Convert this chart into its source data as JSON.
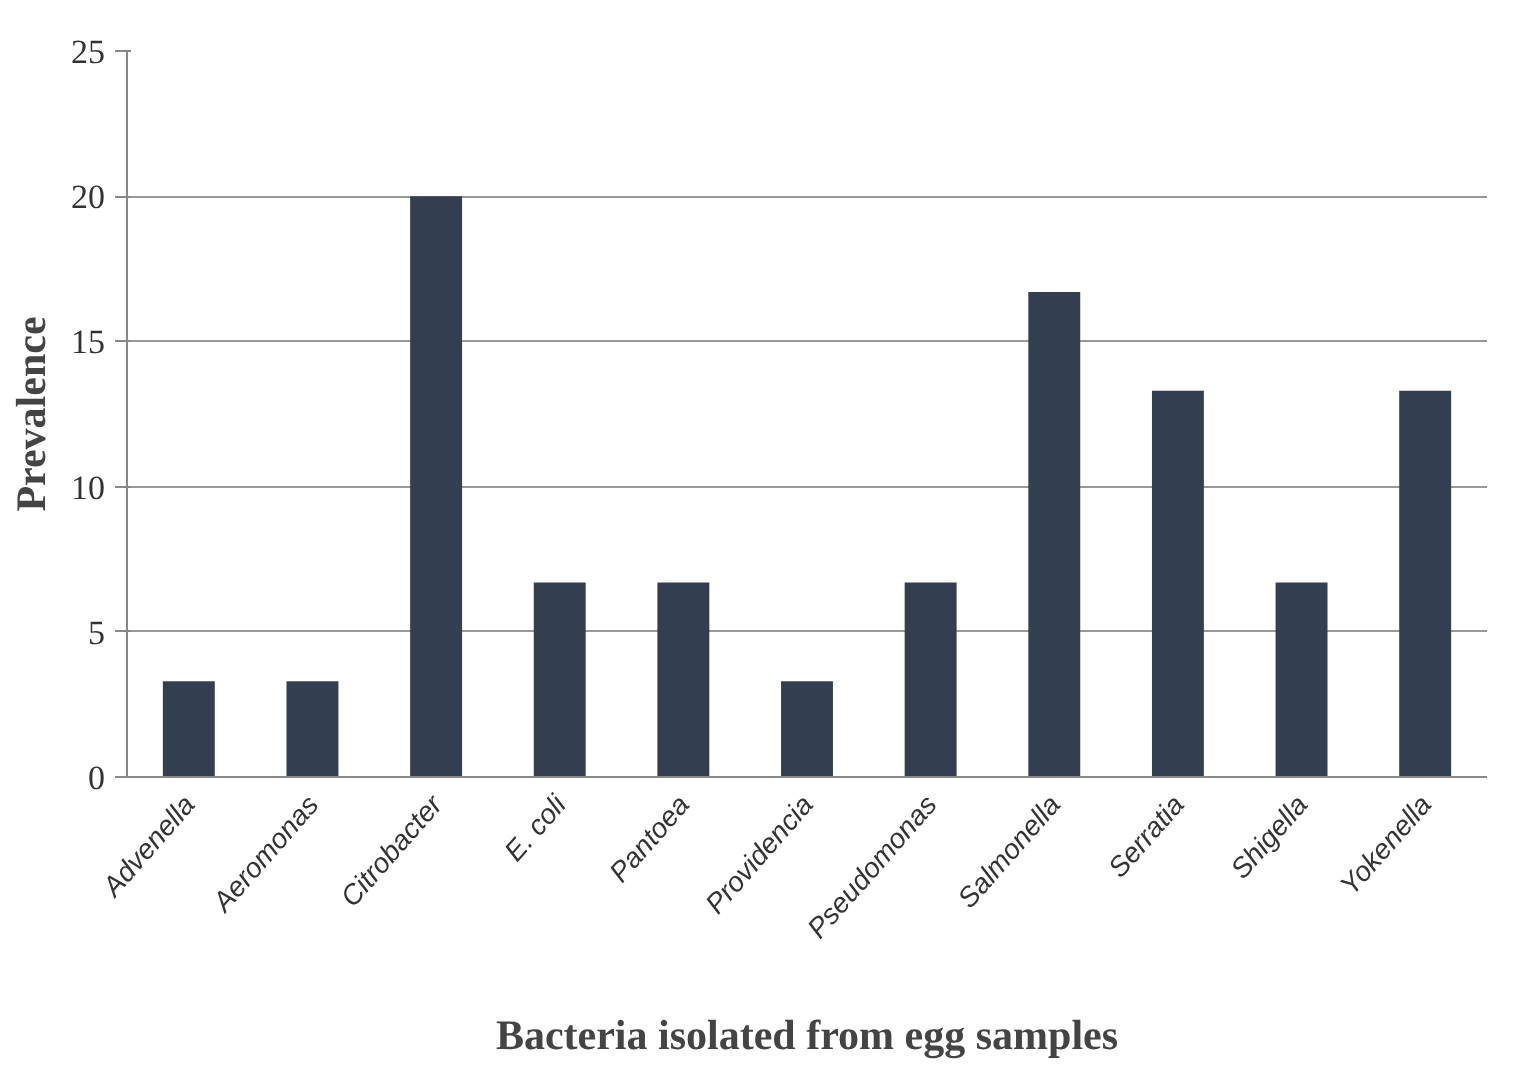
{
  "chart_data": {
    "type": "bar",
    "xlabel": "Bacteria isolated from egg samples",
    "ylabel": "Prevalence",
    "categories": [
      "Advenella",
      "Aeromonas",
      "Citrobacter",
      "E. coli",
      "Pantoea",
      "Providencia",
      "Pseudomonas",
      "Salmonella",
      "Serratia",
      "Shigella",
      "Yokenella"
    ],
    "series": [
      {
        "color": "#333f50",
        "values": [
          3.3,
          3.3,
          20,
          6.7,
          6.7,
          3.3,
          6.7,
          16.7,
          13.3,
          6.7,
          13.3
        ]
      }
    ],
    "ylim": [
      0,
      25
    ],
    "yticks": [
      0,
      5,
      10,
      15,
      20,
      25
    ],
    "grid": "y"
  }
}
